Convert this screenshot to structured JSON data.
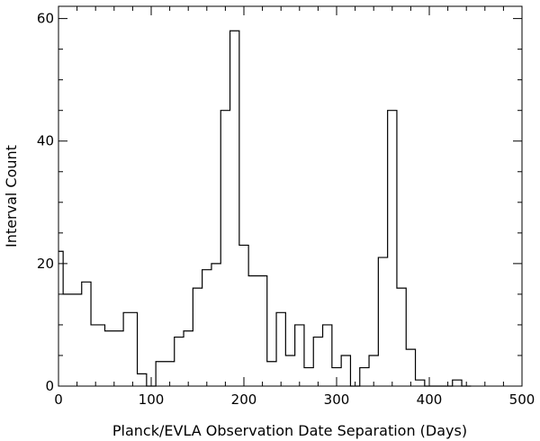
{
  "chart_data": {
    "type": "histogram",
    "title": "",
    "xlabel": "Planck/EVLA Observation Date Separation (Days)",
    "ylabel": "Interval Count",
    "xlim": [
      0,
      500
    ],
    "ylim": [
      0,
      62
    ],
    "xticks": [
      0,
      100,
      200,
      300,
      400,
      500
    ],
    "yticks": [
      0,
      20,
      40,
      60
    ],
    "grid": false,
    "legend": "none",
    "series": [
      {
        "steps": [
          [
            0,
            5,
            22
          ],
          [
            5,
            15,
            15
          ],
          [
            15,
            25,
            15
          ],
          [
            25,
            35,
            17
          ],
          [
            35,
            50,
            10
          ],
          [
            50,
            70,
            9
          ],
          [
            70,
            85,
            12
          ],
          [
            85,
            95,
            2
          ],
          [
            95,
            105,
            0
          ],
          [
            105,
            115,
            4
          ],
          [
            115,
            125,
            4
          ],
          [
            125,
            135,
            8
          ],
          [
            135,
            145,
            9
          ],
          [
            145,
            155,
            16
          ],
          [
            155,
            165,
            19
          ],
          [
            165,
            175,
            20
          ],
          [
            175,
            185,
            45
          ],
          [
            185,
            195,
            58
          ],
          [
            195,
            205,
            23
          ],
          [
            205,
            215,
            18
          ],
          [
            215,
            225,
            18
          ],
          [
            225,
            235,
            4
          ],
          [
            235,
            245,
            12
          ],
          [
            245,
            255,
            5
          ],
          [
            255,
            265,
            10
          ],
          [
            265,
            275,
            3
          ],
          [
            275,
            285,
            8
          ],
          [
            285,
            295,
            10
          ],
          [
            295,
            305,
            3
          ],
          [
            305,
            315,
            5
          ],
          [
            315,
            325,
            0
          ],
          [
            325,
            335,
            3
          ],
          [
            335,
            345,
            5
          ],
          [
            345,
            355,
            21
          ],
          [
            355,
            365,
            45
          ],
          [
            365,
            375,
            16
          ],
          [
            375,
            385,
            6
          ],
          [
            385,
            395,
            1
          ],
          [
            395,
            405,
            0
          ],
          [
            405,
            415,
            0
          ],
          [
            415,
            425,
            0
          ],
          [
            425,
            435,
            1
          ],
          [
            435,
            445,
            0
          ]
        ]
      }
    ]
  }
}
